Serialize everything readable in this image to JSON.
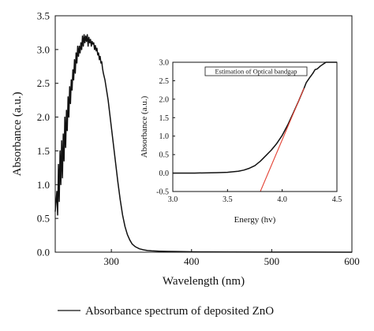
{
  "chart_data": [
    {
      "type": "line",
      "xlabel": "Wavelength (nm)",
      "ylabel": "Absorbance (a.u.)",
      "xlim": [
        230,
        600
      ],
      "ylim": [
        0,
        3.5
      ],
      "xticks": [
        "300",
        "400",
        "500",
        "600"
      ],
      "xtick_values": [
        300,
        400,
        500,
        600
      ],
      "yticks": [
        "0.0",
        "0.5",
        "1.0",
        "1.5",
        "2.0",
        "2.5",
        "3.0",
        "3.5"
      ],
      "ytick_values": [
        0,
        0.5,
        1.0,
        1.5,
        2.0,
        2.5,
        3.0,
        3.5
      ],
      "grid": false,
      "legend_position": "bottom",
      "series": [
        {
          "name": "Absorbance spectrum of deposited ZnO",
          "color": "#111111",
          "x": [
            230,
            232,
            233,
            234,
            235,
            236,
            237,
            238,
            239,
            240,
            241,
            242,
            243,
            244,
            245,
            246,
            247,
            248,
            249,
            250,
            251,
            252,
            253,
            254,
            255,
            256,
            257,
            258,
            259,
            260,
            261,
            262,
            263,
            264,
            265,
            266,
            267,
            268,
            269,
            270,
            271,
            272,
            273,
            274,
            275,
            276,
            277,
            278,
            279,
            280,
            281,
            282,
            283,
            284,
            285,
            286,
            287,
            288,
            289,
            290,
            292,
            294,
            296,
            298,
            300,
            302,
            305,
            308,
            311,
            314,
            317,
            320,
            323,
            326,
            330,
            335,
            340,
            345,
            350,
            360,
            370,
            380,
            400,
            420,
            450,
            500,
            550,
            600
          ],
          "y": [
            0.6,
            0.9,
            0.55,
            1.3,
            0.75,
            1.5,
            1.0,
            1.65,
            1.1,
            1.75,
            1.35,
            2.0,
            1.55,
            2.1,
            1.8,
            2.3,
            2.0,
            2.45,
            2.2,
            2.55,
            2.4,
            2.7,
            2.55,
            2.85,
            2.65,
            2.95,
            2.8,
            3.05,
            2.9,
            3.05,
            2.95,
            3.1,
            3.0,
            3.2,
            3.05,
            3.22,
            3.1,
            3.2,
            3.12,
            3.22,
            3.05,
            3.18,
            3.1,
            3.15,
            3.05,
            3.12,
            3.08,
            3.1,
            3.0,
            3.06,
            2.98,
            3.02,
            2.92,
            2.95,
            2.85,
            2.9,
            2.8,
            2.82,
            2.72,
            2.65,
            2.55,
            2.4,
            2.25,
            2.05,
            1.85,
            1.65,
            1.35,
            1.05,
            0.78,
            0.55,
            0.38,
            0.26,
            0.18,
            0.12,
            0.08,
            0.05,
            0.035,
            0.025,
            0.02,
            0.015,
            0.012,
            0.01,
            0.006,
            0.004,
            0.003,
            0.002,
            0.001,
            0.0
          ]
        }
      ]
    },
    {
      "type": "line",
      "title": "Estimation of Optical bandgap",
      "xlabel": "Energy (hv)",
      "ylabel": "Absorbance (a.u.)",
      "xlim": [
        3.0,
        4.5
      ],
      "ylim": [
        -0.5,
        3.0
      ],
      "xticks": [
        "3.0",
        "3.5",
        "4.0",
        "4.5"
      ],
      "xtick_values": [
        3.0,
        3.5,
        4.0,
        4.5
      ],
      "yticks": [
        "-0.5",
        "0.0",
        "0.5",
        "1.0",
        "1.5",
        "2.0",
        "2.5",
        "3.0"
      ],
      "ytick_values": [
        -0.5,
        0.0,
        0.5,
        1.0,
        1.5,
        2.0,
        2.5,
        3.0
      ],
      "grid": false,
      "series": [
        {
          "color": "#111111",
          "x": [
            3.0,
            3.2,
            3.4,
            3.5,
            3.6,
            3.65,
            3.7,
            3.75,
            3.8,
            3.85,
            3.9,
            3.95,
            4.0,
            4.05,
            4.1,
            4.15,
            4.2,
            4.22,
            4.25,
            4.28,
            4.3,
            4.32,
            4.35,
            4.38,
            4.4,
            4.45,
            4.5
          ],
          "y": [
            0.0,
            0.0,
            0.01,
            0.02,
            0.05,
            0.08,
            0.13,
            0.2,
            0.32,
            0.47,
            0.62,
            0.8,
            1.02,
            1.3,
            1.62,
            1.95,
            2.3,
            2.45,
            2.58,
            2.7,
            2.8,
            2.82,
            2.9,
            2.96,
            3.0,
            3.05,
            3.05
          ]
        },
        {
          "color": "#e34234",
          "x": [
            3.8,
            4.2
          ],
          "y": [
            -0.5,
            2.3
          ]
        }
      ]
    }
  ]
}
